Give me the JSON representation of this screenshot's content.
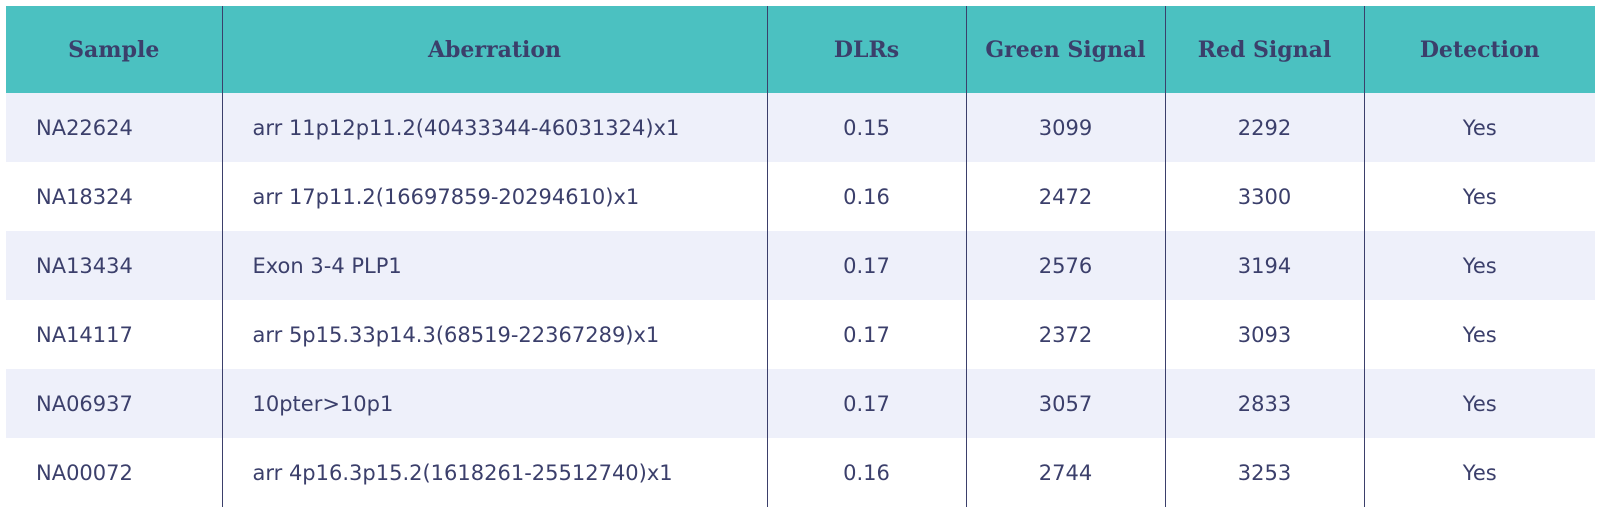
{
  "table": {
    "header": [
      "Sample",
      "Aberration",
      "DLRs",
      "Green Signal",
      "Red Signal",
      "Detection"
    ],
    "rows": [
      [
        "NA22624",
        "arr 11p12p11.2(40433344-46031324)x1",
        "0.15",
        "3099",
        "2292",
        "Yes"
      ],
      [
        "NA18324",
        "arr 17p11.2(16697859-20294610)x1",
        "0.16",
        "2472",
        "3300",
        "Yes"
      ],
      [
        "NA13434",
        "Exon 3-4 PLP1",
        "0.17",
        "2576",
        "3194",
        "Yes"
      ],
      [
        "NA14117",
        "arr 5p15.33p14.3(68519-22367289)x1",
        "0.17",
        "2372",
        "3093",
        "Yes"
      ],
      [
        "NA06937",
        "10pter>10p1",
        "0.17",
        "3057",
        "2833",
        "Yes"
      ],
      [
        "NA00072",
        "arr 4p16.3p15.2(1618261-25512740)x1",
        "0.16",
        "2744",
        "3253",
        "Yes"
      ]
    ]
  }
}
